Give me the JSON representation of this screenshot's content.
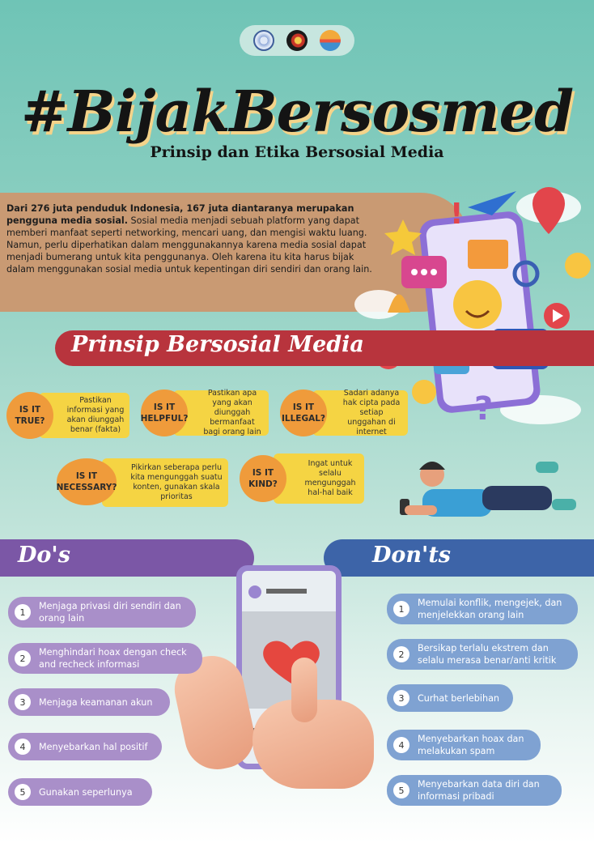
{
  "title": "#BijakBersosmed",
  "subtitle": "Prinsip dan Etika Bersosial Media",
  "intro": {
    "bold": "Dari 276 juta penduduk Indonesia, 167 juta diantaranya merupakan pengguna media sosial.",
    "text": " Sosial media menjadi sebuah platform yang dapat memberi manfaat seperti networking, mencari uang, dan mengisi waktu luang. Namun, perlu diperhatikan dalam menggunakannya karena media sosial dapat menjadi bumerang untuk kita penggunanya. Oleh karena itu kita harus bijak dalam menggunakan sosial media untuk kepentingan diri sendiri dan orang lain."
  },
  "principles": {
    "title": "Prinsip Bersosial Media",
    "items": [
      {
        "q": "IS IT TRUE?",
        "desc": "Pastikan informasi yang akan diunggah benar (fakta)"
      },
      {
        "q": "IS IT HELPFUL?",
        "desc": "Pastikan apa yang akan diunggah bermanfaat bagi orang lain"
      },
      {
        "q": "IS IT ILLEGAL?",
        "desc": "Sadari adanya hak cipta pada setiap unggahan di internet"
      },
      {
        "q": "IS IT NECESSARY?",
        "desc": "Pikirkan seberapa perlu kita mengunggah suatu konten, gunakan skala prioritas"
      },
      {
        "q": "IS IT KIND?",
        "desc": "Ingat untuk selalu mengunggah hal-hal baik"
      }
    ]
  },
  "dos": {
    "title": "Do's",
    "items": [
      {
        "n": "1",
        "text": "Menjaga privasi diri sendiri dan orang lain"
      },
      {
        "n": "2",
        "text": "Menghindari hoax dengan check and recheck informasi"
      },
      {
        "n": "3",
        "text": "Menjaga keamanan akun"
      },
      {
        "n": "4",
        "text": "Menyebarkan hal positif"
      },
      {
        "n": "5",
        "text": "Gunakan seperlunya"
      }
    ]
  },
  "donts": {
    "title": "Don'ts",
    "items": [
      {
        "n": "1",
        "text": "Memulai konflik, mengejek, dan menjelekkan orang lain"
      },
      {
        "n": "2",
        "text": "Bersikap terlalu ekstrem dan selalu merasa benar/anti kritik"
      },
      {
        "n": "3",
        "text": "Curhat berlebihan"
      },
      {
        "n": "4",
        "text": "Menyebarkan hoax dan melakukan spam"
      },
      {
        "n": "5",
        "text": "Menyebarkan data diri dan informasi pribadi"
      }
    ]
  },
  "colors": {
    "accent_red": "#b8343d",
    "do_purple": "#7b57a6",
    "dont_blue": "#3d64a8",
    "principle_yellow": "#f5d443",
    "principle_orange": "#ef9b3b"
  }
}
